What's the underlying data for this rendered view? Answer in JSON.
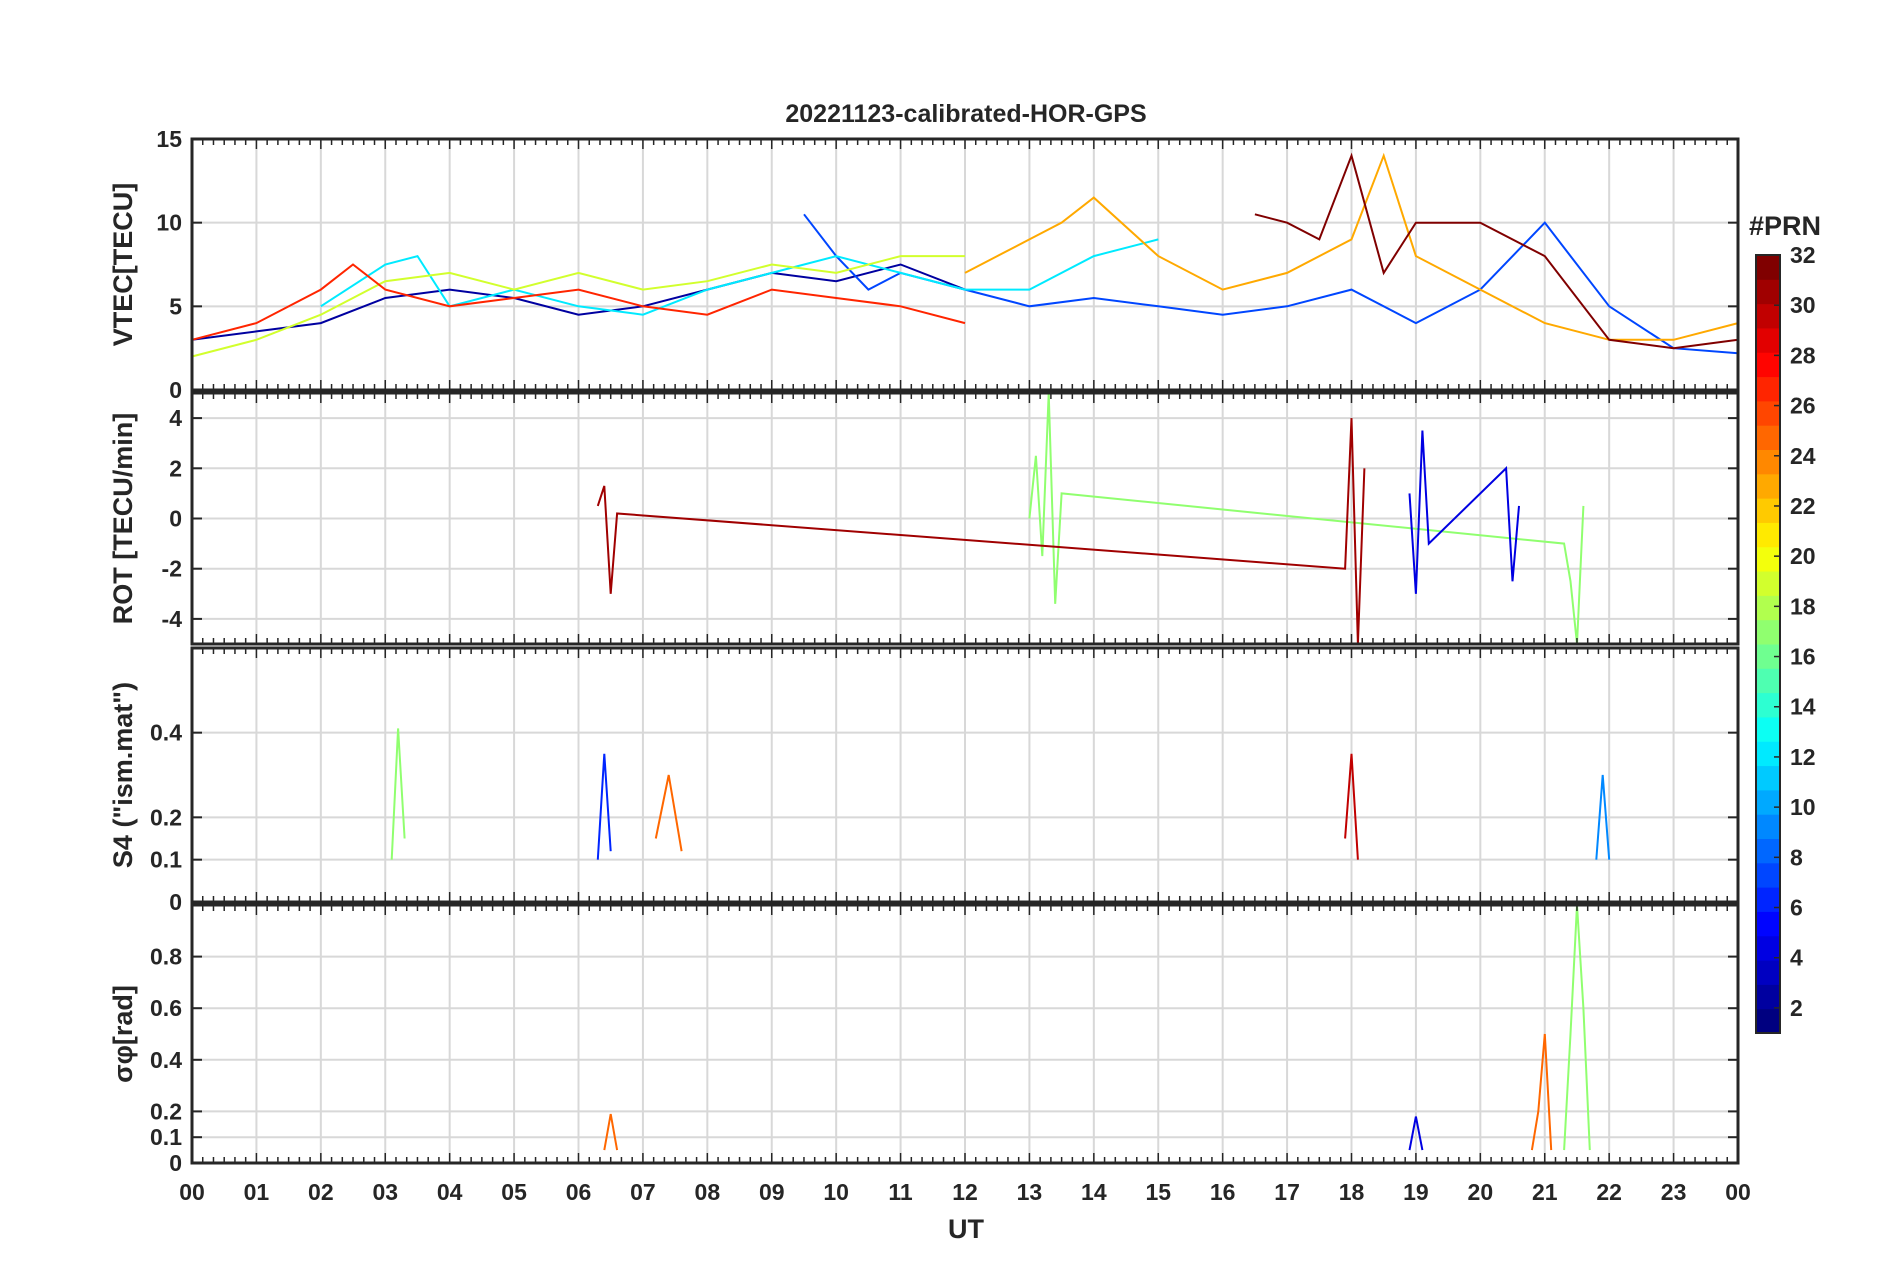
{
  "chart_data": [
    {
      "type": "line",
      "title": "20221123-calibrated-HOR-GPS",
      "ylabel": "VTEC[TECU]",
      "ylim": [
        0,
        15
      ],
      "yticks": [
        0,
        5,
        10,
        15
      ],
      "xlim": [
        0,
        24
      ],
      "grid": true,
      "series_note": "one trace per GPS satellite, colour-coded by #PRN",
      "series": [
        {
          "prn": 2,
          "x": [
            0,
            1,
            2,
            3,
            4,
            5,
            6,
            7,
            8,
            9,
            10,
            11,
            12
          ],
          "values": [
            3,
            3.5,
            4,
            5.5,
            6,
            5.5,
            4.5,
            5,
            6,
            7,
            6.5,
            7.5,
            6
          ]
        },
        {
          "prn": 7,
          "x": [
            9.5,
            10,
            10.5,
            11,
            12,
            13,
            14,
            15,
            16,
            17,
            18,
            19,
            20,
            21,
            22,
            23,
            24
          ],
          "values": [
            10.5,
            8,
            6,
            7,
            6,
            5,
            5.5,
            5,
            4.5,
            5,
            6,
            4,
            6,
            10,
            5,
            2.5,
            2.2
          ]
        },
        {
          "prn": 12,
          "x": [
            2,
            3,
            3.5,
            4,
            5,
            6,
            7,
            8,
            9,
            10,
            11,
            12,
            13,
            14,
            15
          ],
          "values": [
            5,
            7.5,
            8,
            5,
            6,
            5,
            4.5,
            6,
            7,
            8,
            7,
            6,
            6,
            8,
            9
          ]
        },
        {
          "prn": 19,
          "x": [
            0,
            1,
            2,
            3,
            4,
            5,
            6,
            7,
            8,
            9,
            10,
            11,
            12
          ],
          "values": [
            2,
            3,
            4.5,
            6.5,
            7,
            6,
            7,
            6,
            6.5,
            7.5,
            7,
            8,
            8
          ]
        },
        {
          "prn": 23,
          "x": [
            12,
            12.5,
            13,
            13.5,
            14,
            15,
            16,
            17,
            18,
            18.5,
            19,
            20,
            21,
            22,
            23,
            24
          ],
          "values": [
            7,
            8,
            9,
            10,
            11.5,
            8,
            6,
            7,
            9,
            14,
            8,
            6,
            4,
            3,
            3,
            4
          ]
        },
        {
          "prn": 27,
          "x": [
            0,
            1,
            2,
            2.5,
            3,
            4,
            5,
            6,
            7,
            8,
            9,
            10,
            11,
            12
          ],
          "values": [
            3,
            4,
            6,
            7.5,
            6,
            5,
            5.5,
            6,
            5,
            4.5,
            6,
            5.5,
            5,
            4
          ]
        },
        {
          "prn": 32,
          "x": [
            16.5,
            17,
            17.5,
            18,
            18.5,
            19,
            20,
            21,
            22,
            23,
            24
          ],
          "values": [
            10.5,
            10,
            9,
            14,
            7,
            10,
            10,
            8,
            3,
            2.5,
            3
          ]
        }
      ]
    },
    {
      "type": "line",
      "ylabel": "ROT [TECU/min]",
      "ylim": [
        -5,
        5
      ],
      "yticks": [
        -4,
        -2,
        0,
        2,
        4
      ],
      "xlim": [
        0,
        24
      ],
      "grid": true,
      "series_note": "rate of TEC, one trace per PRN",
      "series": [
        {
          "prn": 17,
          "x": [
            13,
            13.1,
            13.2,
            13.3,
            13.4,
            13.5,
            21.3,
            21.4,
            21.5,
            21.6
          ],
          "values": [
            0,
            2.5,
            -1.5,
            5,
            -3.4,
            1,
            -1,
            -2.5,
            -5,
            0.5
          ]
        },
        {
          "prn": 31,
          "x": [
            6.3,
            6.4,
            6.5,
            6.6,
            17.9,
            18,
            18.1,
            18.2
          ],
          "values": [
            0.5,
            1.3,
            -3,
            0.2,
            -2,
            4,
            -5,
            2
          ]
        },
        {
          "prn": 4,
          "x": [
            18.9,
            19,
            19.1,
            19.2,
            20.4,
            20.5,
            20.6
          ],
          "values": [
            1,
            -3,
            3.5,
            -1,
            2,
            -2.5,
            0.5
          ]
        }
      ]
    },
    {
      "type": "line",
      "ylabel": "S4 (\"ism.mat\")",
      "ylim": [
        0,
        0.6
      ],
      "yticks": [
        0,
        0.1,
        0.2,
        0.4
      ],
      "xlim": [
        0,
        24
      ],
      "grid": true,
      "series_note": "amplitude scintillation index, one trace per PRN",
      "series": [
        {
          "prn": 17,
          "x": [
            3.1,
            3.2,
            3.3
          ],
          "values": [
            0.1,
            0.41,
            0.15
          ]
        },
        {
          "prn": 6,
          "x": [
            6.3,
            6.4,
            6.5
          ],
          "values": [
            0.1,
            0.35,
            0.12
          ]
        },
        {
          "prn": 25,
          "x": [
            7.2,
            7.4,
            7.6
          ],
          "values": [
            0.15,
            0.3,
            0.12
          ]
        },
        {
          "prn": 30,
          "x": [
            17.9,
            18,
            18.1
          ],
          "values": [
            0.15,
            0.35,
            0.1
          ]
        },
        {
          "prn": 9,
          "x": [
            21.8,
            21.9,
            22
          ],
          "values": [
            0.1,
            0.3,
            0.1
          ]
        }
      ]
    },
    {
      "type": "line",
      "ylabel": "σφ[rad]",
      "ylim": [
        0,
        1
      ],
      "yticks": [
        0,
        0.1,
        0.2,
        0.4,
        0.6,
        0.8
      ],
      "xlim": [
        0,
        24
      ],
      "grid": true,
      "series_note": "phase scintillation index, one trace per PRN",
      "series": [
        {
          "prn": 25,
          "x": [
            20.8,
            20.9,
            21,
            21.1
          ],
          "values": [
            0.05,
            0.2,
            0.5,
            0.05
          ]
        },
        {
          "prn": 17,
          "x": [
            21.3,
            21.4,
            21.5,
            21.6,
            21.7
          ],
          "values": [
            0.05,
            0.5,
            1,
            0.6,
            0.05
          ]
        },
        {
          "prn": 4,
          "x": [
            18.9,
            19,
            19.1
          ],
          "values": [
            0.05,
            0.18,
            0.05
          ]
        },
        {
          "prn": 25,
          "x": [
            6.4,
            6.5,
            6.6
          ],
          "values": [
            0.05,
            0.19,
            0.05
          ]
        }
      ]
    }
  ],
  "xaxis": {
    "label": "UT",
    "tick_labels": [
      "00",
      "01",
      "02",
      "03",
      "04",
      "05",
      "06",
      "07",
      "08",
      "09",
      "10",
      "11",
      "12",
      "13",
      "14",
      "15",
      "16",
      "17",
      "18",
      "19",
      "20",
      "21",
      "22",
      "23",
      "00"
    ]
  },
  "colorbar": {
    "title": "#PRN",
    "range": [
      1,
      32
    ],
    "tick_values": [
      2,
      4,
      6,
      8,
      10,
      12,
      14,
      16,
      18,
      20,
      22,
      24,
      26,
      28,
      30,
      32
    ],
    "tick_labels": [
      "2",
      "4",
      "6",
      "8",
      "10",
      "12",
      "14",
      "16",
      "18",
      "20",
      "22",
      "24",
      "26",
      "28",
      "30",
      "32"
    ],
    "colormap": "jet"
  },
  "colors": {
    "axes": "#262626",
    "grid": "#d8d8d8",
    "background": "#ffffff"
  }
}
